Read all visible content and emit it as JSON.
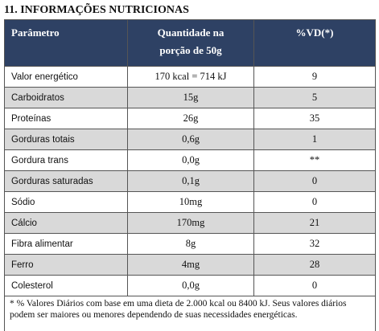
{
  "title": "11. INFORMAÇÕES NUTRICIONAS",
  "table": {
    "header": [
      "Parâmetro",
      [
        "Quantidade na",
        "porção de 50g"
      ],
      "%VD(*)"
    ],
    "rows": [
      [
        "Valor energético",
        "170 kcal = 714 kJ",
        "9"
      ],
      [
        "Carboidratos",
        "15g",
        "5"
      ],
      [
        "Proteínas",
        "26g",
        "35"
      ],
      [
        "Gorduras totais",
        "0,6g",
        "1"
      ],
      [
        "Gordura trans",
        "0,0g",
        "**"
      ],
      [
        "Gorduras saturadas",
        "0,1g",
        "0"
      ],
      [
        "Sódio",
        "10mg",
        "0"
      ],
      [
        "Cálcio",
        "170mg",
        "21"
      ],
      [
        "Fibra alimentar",
        "8g",
        "32"
      ],
      [
        "Ferro",
        "4mg",
        "28"
      ],
      [
        "Colesterol",
        "0,0g",
        "0"
      ]
    ],
    "footnote": "* % Valores Diários com base em uma dieta de 2.000 kcal ou 8400 kJ. Seus valores diários podem ser maiores ou menores dependendo de suas necessidades energéticas."
  }
}
